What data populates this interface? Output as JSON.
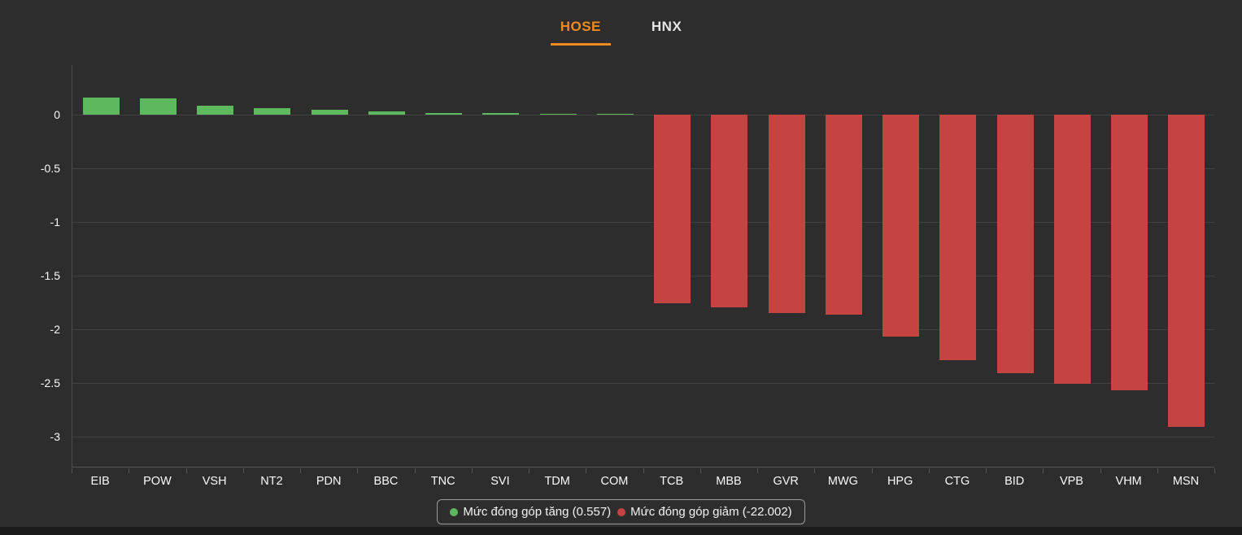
{
  "tabs": [
    {
      "label": "HOSE",
      "active": true
    },
    {
      "label": "HNX",
      "active": false
    }
  ],
  "colors": {
    "background": "#2d2d2d",
    "accent": "#f08a1e",
    "positive": "#5eb95e",
    "negative": "#c54442",
    "grid": "#424242"
  },
  "chart_data": {
    "type": "bar",
    "categories": [
      "EIB",
      "POW",
      "VSH",
      "NT2",
      "PDN",
      "BBC",
      "TNC",
      "SVI",
      "TDM",
      "COM",
      "TCB",
      "MBB",
      "GVR",
      "MWG",
      "HPG",
      "CTG",
      "BID",
      "VPB",
      "VHM",
      "MSN"
    ],
    "values": [
      0.16,
      0.15,
      0.08,
      0.06,
      0.04,
      0.03,
      0.015,
      0.01,
      0.007,
      0.005,
      -1.76,
      -1.8,
      -1.85,
      -1.87,
      -2.07,
      -2.29,
      -2.41,
      -2.51,
      -2.57,
      -2.91
    ],
    "title": "",
    "xlabel": "",
    "ylabel": "",
    "yticks": [
      0,
      -0.5,
      -1,
      -1.5,
      -2,
      -2.5,
      -3
    ],
    "ylim": [
      0.46,
      -3.29
    ],
    "grid": true,
    "legend_position": "bottom",
    "positive_total": 0.557,
    "negative_total": -22.002
  },
  "legend": {
    "increase_label": "Mức đóng góp tăng (0.557)",
    "decrease_label": "Mức đóng góp giảm (-22.002)"
  }
}
